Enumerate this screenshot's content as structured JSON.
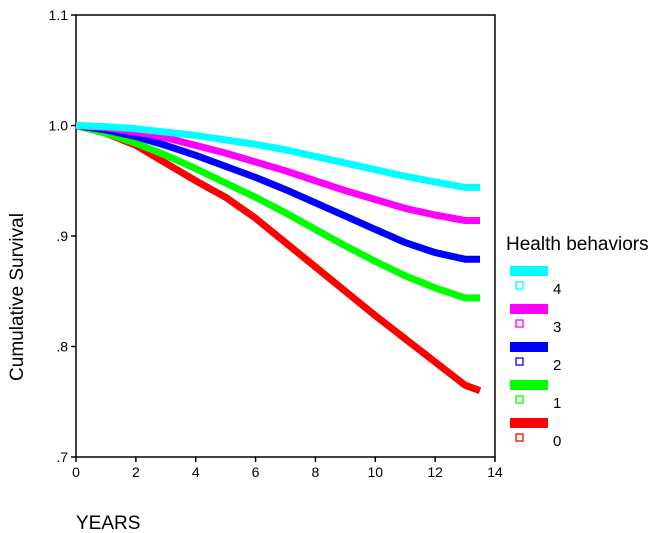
{
  "chart_data": {
    "type": "line",
    "title": "",
    "xlabel": "YEARS",
    "ylabel": "Cumulative Survival",
    "xlim": [
      0,
      14
    ],
    "ylim": [
      0.7,
      1.1
    ],
    "x_ticks": [
      0,
      2,
      4,
      6,
      8,
      10,
      12,
      14
    ],
    "x_tick_labels": [
      "0",
      "2",
      "4",
      "6",
      "8",
      "10",
      "12",
      "14"
    ],
    "y_ticks": [
      0.7,
      0.8,
      0.9,
      1.0,
      1.1
    ],
    "y_tick_labels": [
      ".7",
      ".8",
      ".9",
      "1.0",
      "1.1"
    ],
    "grid": false,
    "legend": {
      "title": "Health behaviors",
      "placement": "right"
    },
    "x": [
      0,
      1,
      2,
      3,
      4,
      5,
      6,
      7,
      8,
      9,
      10,
      11,
      12,
      13,
      13.5
    ],
    "series": [
      {
        "name": "4",
        "color": "#00ffff",
        "values": [
          1.0,
          0.999,
          0.997,
          0.994,
          0.991,
          0.987,
          0.983,
          0.978,
          0.972,
          0.966,
          0.96,
          0.954,
          0.949,
          0.944,
          0.944
        ]
      },
      {
        "name": "3",
        "color": "#ff00ff",
        "values": [
          1.0,
          0.998,
          0.994,
          0.989,
          0.982,
          0.975,
          0.967,
          0.959,
          0.95,
          0.941,
          0.933,
          0.925,
          0.919,
          0.914,
          0.914
        ]
      },
      {
        "name": "2",
        "color": "#0000ff",
        "values": [
          1.0,
          0.996,
          0.99,
          0.982,
          0.973,
          0.963,
          0.953,
          0.942,
          0.93,
          0.918,
          0.906,
          0.894,
          0.885,
          0.879,
          0.879
        ]
      },
      {
        "name": "1",
        "color": "#00ff00",
        "values": [
          1.0,
          0.993,
          0.984,
          0.973,
          0.961,
          0.948,
          0.935,
          0.921,
          0.906,
          0.891,
          0.877,
          0.864,
          0.853,
          0.844,
          0.844
        ]
      },
      {
        "name": "0",
        "color": "#ff0000",
        "values": [
          1.0,
          0.993,
          0.982,
          0.966,
          0.95,
          0.935,
          0.916,
          0.894,
          0.872,
          0.85,
          0.828,
          0.807,
          0.786,
          0.765,
          0.76
        ]
      }
    ]
  }
}
